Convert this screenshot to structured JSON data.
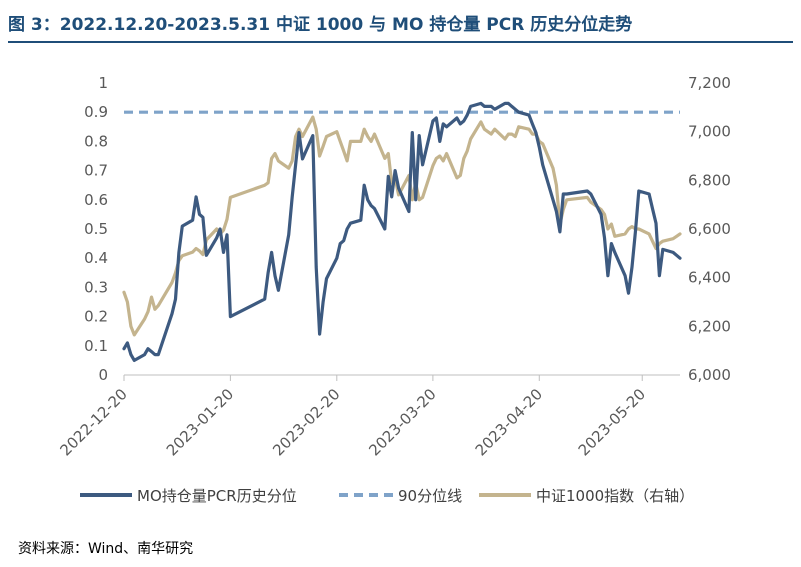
{
  "title": "图 3：2022.12.20-2023.5.31 中证 1000 与 MO 持仓量 PCR 历史分位走势",
  "source": "资料来源：Wind、南华研究",
  "chart_data": {
    "type": "line",
    "x_tick_labels": [
      "2022-12-20",
      "2023-01-20",
      "2023-02-20",
      "2023-03-20",
      "2023-04-20",
      "2023-05-20"
    ],
    "x_range": [
      "2022-12-20",
      "2023-05-31"
    ],
    "y_left": {
      "range": [
        0,
        1
      ],
      "ticks": [
        "0",
        "0.1",
        "0.2",
        "0.3",
        "0.4",
        "0.5",
        "0.6",
        "0.7",
        "0.8",
        "0.9",
        "1"
      ]
    },
    "y_right": {
      "range": [
        6000,
        7200
      ],
      "ticks": [
        "6,000",
        "6,200",
        "6,400",
        "6,600",
        "6,800",
        "7,000",
        "7,200"
      ]
    },
    "grid": false,
    "legend_position": "bottom",
    "colors": {
      "pcr": "#3d5a80",
      "p90": "#7fa3c9",
      "index": "#c4b48e",
      "title": "#1f4e79"
    },
    "series": [
      {
        "name": "MO持仓量PCR历史分位",
        "axis": "left",
        "style": "solid",
        "points": [
          [
            "2022-12-20",
            0.09
          ],
          [
            "2022-12-21",
            0.11
          ],
          [
            "2022-12-22",
            0.07
          ],
          [
            "2022-12-23",
            0.05
          ],
          [
            "2022-12-26",
            0.07
          ],
          [
            "2022-12-27",
            0.09
          ],
          [
            "2022-12-28",
            0.08
          ],
          [
            "2022-12-29",
            0.07
          ],
          [
            "2022-12-30",
            0.07
          ],
          [
            "2023-01-03",
            0.21
          ],
          [
            "2023-01-04",
            0.26
          ],
          [
            "2023-01-05",
            0.42
          ],
          [
            "2023-01-06",
            0.51
          ],
          [
            "2023-01-09",
            0.53
          ],
          [
            "2023-01-10",
            0.61
          ],
          [
            "2023-01-11",
            0.55
          ],
          [
            "2023-01-12",
            0.54
          ],
          [
            "2023-01-13",
            0.41
          ],
          [
            "2023-01-16",
            0.47
          ],
          [
            "2023-01-17",
            0.5
          ],
          [
            "2023-01-18",
            0.42
          ],
          [
            "2023-01-19",
            0.48
          ],
          [
            "2023-01-20",
            0.2
          ],
          [
            "2023-01-30",
            0.26
          ],
          [
            "2023-01-31",
            0.35
          ],
          [
            "2023-02-01",
            0.42
          ],
          [
            "2023-02-02",
            0.34
          ],
          [
            "2023-02-03",
            0.29
          ],
          [
            "2023-02-06",
            0.48
          ],
          [
            "2023-02-07",
            0.61
          ],
          [
            "2023-02-08",
            0.72
          ],
          [
            "2023-02-09",
            0.83
          ],
          [
            "2023-02-10",
            0.74
          ],
          [
            "2023-02-13",
            0.82
          ],
          [
            "2023-02-14",
            0.37
          ],
          [
            "2023-02-15",
            0.14
          ],
          [
            "2023-02-16",
            0.25
          ],
          [
            "2023-02-17",
            0.33
          ],
          [
            "2023-02-20",
            0.4
          ],
          [
            "2023-02-21",
            0.45
          ],
          [
            "2023-02-22",
            0.46
          ],
          [
            "2023-02-23",
            0.5
          ],
          [
            "2023-02-24",
            0.52
          ],
          [
            "2023-02-27",
            0.53
          ],
          [
            "2023-02-28",
            0.65
          ],
          [
            "2023-03-01",
            0.6
          ],
          [
            "2023-03-02",
            0.58
          ],
          [
            "2023-03-03",
            0.57
          ],
          [
            "2023-03-06",
            0.5
          ],
          [
            "2023-03-07",
            0.68
          ],
          [
            "2023-03-08",
            0.61
          ],
          [
            "2023-03-09",
            0.7
          ],
          [
            "2023-03-10",
            0.64
          ],
          [
            "2023-03-13",
            0.56
          ],
          [
            "2023-03-14",
            0.83
          ],
          [
            "2023-03-15",
            0.6
          ],
          [
            "2023-03-16",
            0.82
          ],
          [
            "2023-03-17",
            0.72
          ],
          [
            "2023-03-20",
            0.87
          ],
          [
            "2023-03-21",
            0.88
          ],
          [
            "2023-03-22",
            0.8
          ],
          [
            "2023-03-23",
            0.86
          ],
          [
            "2023-03-24",
            0.85
          ],
          [
            "2023-03-27",
            0.88
          ],
          [
            "2023-03-28",
            0.86
          ],
          [
            "2023-03-29",
            0.87
          ],
          [
            "2023-03-30",
            0.89
          ],
          [
            "2023-03-31",
            0.92
          ],
          [
            "2023-04-03",
            0.93
          ],
          [
            "2023-04-04",
            0.92
          ],
          [
            "2023-04-06",
            0.92
          ],
          [
            "2023-04-07",
            0.91
          ],
          [
            "2023-04-10",
            0.93
          ],
          [
            "2023-04-11",
            0.93
          ],
          [
            "2023-04-12",
            0.92
          ],
          [
            "2023-04-13",
            0.91
          ],
          [
            "2023-04-14",
            0.9
          ],
          [
            "2023-04-17",
            0.89
          ],
          [
            "2023-04-18",
            0.86
          ],
          [
            "2023-04-19",
            0.83
          ],
          [
            "2023-04-20",
            0.78
          ],
          [
            "2023-04-21",
            0.72
          ],
          [
            "2023-04-24",
            0.6
          ],
          [
            "2023-04-25",
            0.56
          ],
          [
            "2023-04-26",
            0.49
          ],
          [
            "2023-04-27",
            0.62
          ],
          [
            "2023-04-28",
            0.62
          ],
          [
            "2023-05-04",
            0.63
          ],
          [
            "2023-05-05",
            0.62
          ],
          [
            "2023-05-08",
            0.55
          ],
          [
            "2023-05-09",
            0.47
          ],
          [
            "2023-05-10",
            0.34
          ],
          [
            "2023-05-11",
            0.45
          ],
          [
            "2023-05-12",
            0.42
          ],
          [
            "2023-05-15",
            0.34
          ],
          [
            "2023-05-16",
            0.28
          ],
          [
            "2023-05-17",
            0.37
          ],
          [
            "2023-05-18",
            0.49
          ],
          [
            "2023-05-19",
            0.63
          ],
          [
            "2023-05-22",
            0.62
          ],
          [
            "2023-05-23",
            0.57
          ],
          [
            "2023-05-24",
            0.52
          ],
          [
            "2023-05-25",
            0.34
          ],
          [
            "2023-05-26",
            0.43
          ],
          [
            "2023-05-29",
            0.42
          ],
          [
            "2023-05-30",
            0.41
          ],
          [
            "2023-05-31",
            0.4
          ]
        ]
      },
      {
        "name": "90分位线",
        "axis": "left",
        "style": "dashed",
        "points": [
          [
            "2022-12-20",
            0.9
          ],
          [
            "2023-05-31",
            0.9
          ]
        ]
      },
      {
        "name": "中证1000指数（右轴）",
        "axis": "right",
        "style": "solid",
        "points": [
          [
            "2022-12-20",
            6340
          ],
          [
            "2022-12-21",
            6300
          ],
          [
            "2022-12-22",
            6200
          ],
          [
            "2022-12-23",
            6165
          ],
          [
            "2022-12-26",
            6230
          ],
          [
            "2022-12-27",
            6260
          ],
          [
            "2022-12-28",
            6320
          ],
          [
            "2022-12-29",
            6270
          ],
          [
            "2022-12-30",
            6285
          ],
          [
            "2023-01-03",
            6380
          ],
          [
            "2023-01-04",
            6420
          ],
          [
            "2023-01-05",
            6470
          ],
          [
            "2023-01-06",
            6490
          ],
          [
            "2023-01-09",
            6505
          ],
          [
            "2023-01-10",
            6520
          ],
          [
            "2023-01-11",
            6510
          ],
          [
            "2023-01-12",
            6495
          ],
          [
            "2023-01-13",
            6555
          ],
          [
            "2023-01-16",
            6600
          ],
          [
            "2023-01-17",
            6580
          ],
          [
            "2023-01-18",
            6595
          ],
          [
            "2023-01-19",
            6640
          ],
          [
            "2023-01-20",
            6730
          ],
          [
            "2023-01-30",
            6780
          ],
          [
            "2023-01-31",
            6790
          ],
          [
            "2023-02-01",
            6890
          ],
          [
            "2023-02-02",
            6910
          ],
          [
            "2023-02-03",
            6880
          ],
          [
            "2023-02-06",
            6850
          ],
          [
            "2023-02-07",
            6880
          ],
          [
            "2023-02-08",
            6980
          ],
          [
            "2023-02-09",
            7010
          ],
          [
            "2023-02-10",
            6980
          ],
          [
            "2023-02-13",
            7060
          ],
          [
            "2023-02-14",
            7010
          ],
          [
            "2023-02-15",
            6900
          ],
          [
            "2023-02-16",
            6940
          ],
          [
            "2023-02-17",
            6980
          ],
          [
            "2023-02-20",
            7000
          ],
          [
            "2023-02-21",
            6960
          ],
          [
            "2023-02-22",
            6920
          ],
          [
            "2023-02-23",
            6880
          ],
          [
            "2023-02-24",
            6960
          ],
          [
            "2023-02-27",
            6960
          ],
          [
            "2023-02-28",
            7010
          ],
          [
            "2023-03-01",
            6980
          ],
          [
            "2023-03-02",
            6960
          ],
          [
            "2023-03-03",
            6990
          ],
          [
            "2023-03-06",
            6890
          ],
          [
            "2023-03-07",
            6910
          ],
          [
            "2023-03-08",
            6790
          ],
          [
            "2023-03-09",
            6810
          ],
          [
            "2023-03-10",
            6740
          ],
          [
            "2023-03-13",
            6820
          ],
          [
            "2023-03-14",
            6720
          ],
          [
            "2023-03-15",
            6790
          ],
          [
            "2023-03-16",
            6720
          ],
          [
            "2023-03-17",
            6730
          ],
          [
            "2023-03-20",
            6860
          ],
          [
            "2023-03-21",
            6890
          ],
          [
            "2023-03-22",
            6900
          ],
          [
            "2023-03-23",
            6880
          ],
          [
            "2023-03-24",
            6910
          ],
          [
            "2023-03-27",
            6810
          ],
          [
            "2023-03-28",
            6820
          ],
          [
            "2023-03-29",
            6890
          ],
          [
            "2023-03-30",
            6920
          ],
          [
            "2023-03-31",
            6970
          ],
          [
            "2023-04-03",
            7040
          ],
          [
            "2023-04-04",
            7010
          ],
          [
            "2023-04-06",
            6990
          ],
          [
            "2023-04-07",
            7010
          ],
          [
            "2023-04-10",
            6970
          ],
          [
            "2023-04-11",
            6990
          ],
          [
            "2023-04-12",
            6990
          ],
          [
            "2023-04-13",
            6980
          ],
          [
            "2023-04-14",
            7020
          ],
          [
            "2023-04-17",
            7010
          ],
          [
            "2023-04-18",
            6990
          ],
          [
            "2023-04-19",
            6990
          ],
          [
            "2023-04-20",
            6960
          ],
          [
            "2023-04-21",
            6950
          ],
          [
            "2023-04-24",
            6850
          ],
          [
            "2023-04-25",
            6780
          ],
          [
            "2023-04-26",
            6620
          ],
          [
            "2023-04-27",
            6680
          ],
          [
            "2023-04-28",
            6720
          ],
          [
            "2023-05-04",
            6730
          ],
          [
            "2023-05-05",
            6710
          ],
          [
            "2023-05-08",
            6680
          ],
          [
            "2023-05-09",
            6660
          ],
          [
            "2023-05-10",
            6600
          ],
          [
            "2023-05-11",
            6620
          ],
          [
            "2023-05-12",
            6570
          ],
          [
            "2023-05-15",
            6580
          ],
          [
            "2023-05-16",
            6600
          ],
          [
            "2023-05-17",
            6610
          ],
          [
            "2023-05-18",
            6600
          ],
          [
            "2023-05-19",
            6600
          ],
          [
            "2023-05-22",
            6580
          ],
          [
            "2023-05-23",
            6550
          ],
          [
            "2023-05-24",
            6520
          ],
          [
            "2023-05-25",
            6540
          ],
          [
            "2023-05-26",
            6550
          ],
          [
            "2023-05-29",
            6560
          ],
          [
            "2023-05-30",
            6570
          ],
          [
            "2023-05-31",
            6580
          ]
        ]
      }
    ]
  }
}
